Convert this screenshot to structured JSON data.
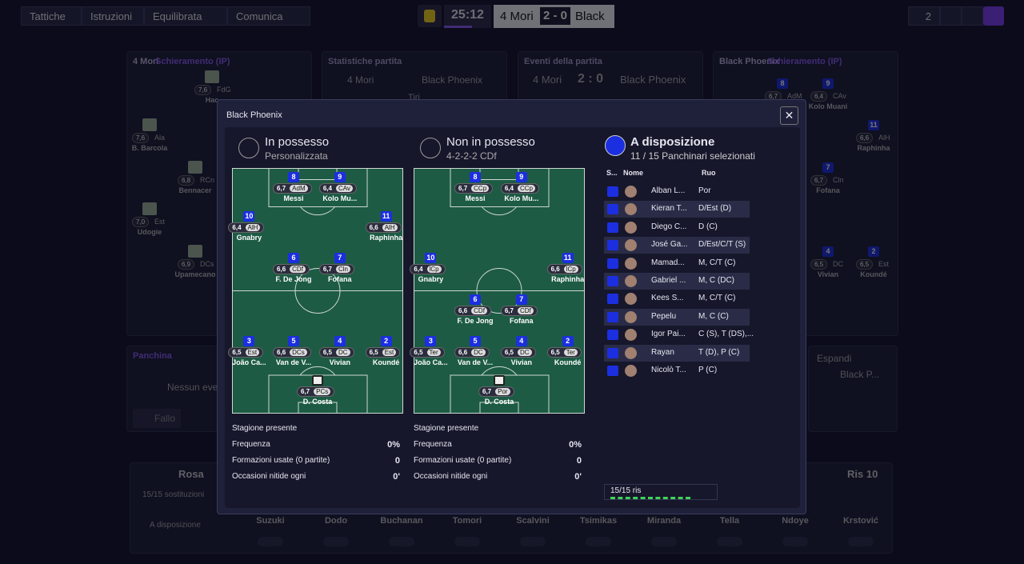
{
  "topbar": {
    "buttons": [
      "Tattiche",
      "Istruzioni",
      "Equilibrata",
      "Comunica"
    ],
    "clock": "25:12",
    "home": "4 Mori",
    "score": "2 - 0",
    "away": "Black",
    "users": "2"
  },
  "background": {
    "panels": [
      {
        "team": "4 Mori",
        "title": "Schieramento (IP)"
      },
      {
        "title": "Statistiche partita"
      },
      {
        "title": "Eventi della partita"
      },
      {
        "team": "Black Phoenix",
        "title": "Schieramento (IP)"
      }
    ],
    "stats": {
      "home": "4 Mori",
      "away": "Black Phoenix",
      "row": "Tiri"
    },
    "events": {
      "home": "4 Mori",
      "score": "2 : 0",
      "away": "Black Phoenix"
    },
    "home_players": [
      {
        "rating": "7,6",
        "role": "FdG",
        "name": "Hac"
      },
      {
        "rating": "7,6",
        "role": "Ala",
        "name": "B. Barcola"
      },
      {
        "rating": "6,8",
        "role": "RCn",
        "name": "Bennacer"
      },
      {
        "rating": "7,0",
        "role": "Est",
        "name": "Udogie"
      },
      {
        "rating": "6,9",
        "role": "DCs",
        "name": "Upamecano"
      }
    ],
    "away_players": [
      {
        "num": "8",
        "rating": "6,7",
        "role": "AdM"
      },
      {
        "num": "9",
        "rating": "6,4",
        "role": "CAv",
        "name": "Kolo Muani"
      },
      {
        "num": "11",
        "rating": "6,6",
        "role": "AlH",
        "name": "Raphinha"
      },
      {
        "num": "7",
        "rating": "6,7",
        "role": "Cln",
        "name": "Fofana"
      },
      {
        "num": "4",
        "rating": "6,5",
        "role": "DC",
        "name": "Vivian"
      },
      {
        "num": "2",
        "rating": "6,5",
        "role": "Est",
        "name": "Koundé"
      }
    ],
    "bench_panel": {
      "title": "Panchina",
      "empty": "Nessun evento",
      "foul": "Fallo"
    },
    "expand": {
      "label": "Espandi",
      "team": "Black P..."
    },
    "squad": {
      "title": "Rosa",
      "subs": "15/15 sostituzioni",
      "available": "A disposizione",
      "reserve": "Ris 10",
      "names": [
        "Suzuki",
        "Dodo",
        "Buchanan",
        "Tomori",
        "Scalvini",
        "Tsimikas",
        "Miranda",
        "Tella",
        "Ndoye",
        "Krstović"
      ]
    }
  },
  "modal": {
    "title": "Black Phoenix",
    "formations": [
      {
        "title": "In possesso",
        "subtitle": "Personalizzata",
        "players": [
          {
            "num": "8",
            "rating": "6,7",
            "role": "AdM",
            "name": "Messi"
          },
          {
            "num": "9",
            "rating": "6,4",
            "role": "CAv",
            "name": "Kolo Mu..."
          },
          {
            "num": "10",
            "rating": "6,4",
            "role": "AlH",
            "name": "Gnabry"
          },
          {
            "num": "11",
            "rating": "6,6",
            "role": "AlH",
            "name": "Raphinha"
          },
          {
            "num": "6",
            "rating": "6,6",
            "role": "CDf",
            "name": "F. De Jong"
          },
          {
            "num": "7",
            "rating": "6,7",
            "role": "Cln",
            "name": "Fofana"
          },
          {
            "num": "3",
            "rating": "6,5",
            "role": "Est",
            "name": "João Ca..."
          },
          {
            "num": "5",
            "rating": "6,6",
            "role": "DCs",
            "name": "Van de V..."
          },
          {
            "num": "4",
            "rating": "6,5",
            "role": "DC",
            "name": "Vivian"
          },
          {
            "num": "2",
            "rating": "6,5",
            "role": "Est",
            "name": "Koundé"
          },
          {
            "rating": "6,7",
            "role": "PCs",
            "name": "D. Costa"
          }
        ],
        "stats": [
          {
            "label": "Stagione presente"
          },
          {
            "label": "Frequenza",
            "value": "0%"
          },
          {
            "label": "Formazioni usate (0 partite)",
            "value": "0"
          },
          {
            "label": "Occasioni nitide ogni",
            "value": "0'"
          }
        ]
      },
      {
        "title": "Non in possesso",
        "subtitle": "4-2-2-2 CDf",
        "players": [
          {
            "num": "8",
            "rating": "6,7",
            "role": "CCp",
            "name": "Messi"
          },
          {
            "num": "9",
            "rating": "6,4",
            "role": "CCp",
            "name": "Kolo Mu..."
          },
          {
            "num": "10",
            "rating": "6,4",
            "role": "lCp",
            "name": "Gnabry"
          },
          {
            "num": "11",
            "rating": "6,6",
            "role": "lCp",
            "name": "Raphinha"
          },
          {
            "num": "6",
            "rating": "6,6",
            "role": "CDf",
            "name": "F. De Jong"
          },
          {
            "num": "7",
            "rating": "6,7",
            "role": "CDf",
            "name": "Fofana"
          },
          {
            "num": "3",
            "rating": "6,5",
            "role": "Ter",
            "name": "João Ca..."
          },
          {
            "num": "5",
            "rating": "6,6",
            "role": "DC",
            "name": "Van de V..."
          },
          {
            "num": "4",
            "rating": "6,5",
            "role": "DC",
            "name": "Vivian"
          },
          {
            "num": "2",
            "rating": "6,5",
            "role": "Ter",
            "name": "Koundé"
          },
          {
            "rating": "6,7",
            "role": "Por",
            "name": "D. Costa"
          }
        ],
        "stats": [
          {
            "label": "Stagione presente"
          },
          {
            "label": "Frequenza",
            "value": "0%"
          },
          {
            "label": "Formazioni usate (0 partite)",
            "value": "0"
          },
          {
            "label": "Occasioni nitide ogni",
            "value": "0'"
          }
        ]
      }
    ],
    "bench": {
      "title": "A disposizione",
      "subtitle": "11 / 15 Panchinari selezionati",
      "headers": [
        "S...",
        "Nome",
        "Ruo"
      ],
      "rows": [
        {
          "name": "Alban L...",
          "role": "Por"
        },
        {
          "name": "Kieran T...",
          "role": "D/Est (D)"
        },
        {
          "name": "Diego C...",
          "role": "D (C)"
        },
        {
          "name": "José Ga...",
          "role": "D/Est/C/T (S)"
        },
        {
          "name": "Mamad...",
          "role": "M, C/T (C)"
        },
        {
          "name": "Gabriel ...",
          "role": "M, C (DC)"
        },
        {
          "name": "Kees S...",
          "role": "M, C/T (C)"
        },
        {
          "name": "Pepelu",
          "role": "M, C (C)"
        },
        {
          "name": "Igor Pai...",
          "role": "C (S), T (DS),..."
        },
        {
          "name": "Rayan",
          "role": "T (D), P (C)"
        },
        {
          "name": "Nicolò T...",
          "role": "P (C)"
        }
      ],
      "footer": "15/15 ris"
    }
  }
}
